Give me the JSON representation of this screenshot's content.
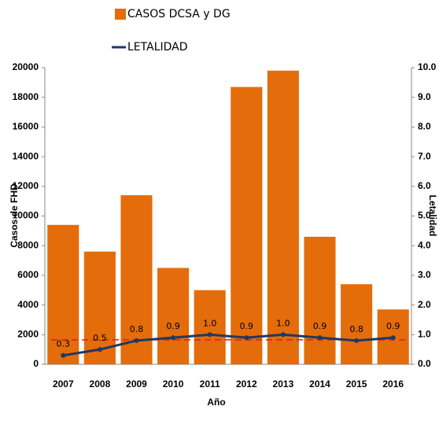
{
  "chart_data": {
    "type": "bar-line",
    "legend_position": "top",
    "xlabel": "Año",
    "ylabel": "Casos de FHD",
    "y2label": "Letalidad",
    "categories": [
      "2007",
      "2008",
      "2009",
      "2010",
      "2011",
      "2012",
      "2013",
      "2014",
      "2015",
      "2016"
    ],
    "series": [
      {
        "name": "CASOS DCSA y DG",
        "type": "bar",
        "color": "#e46c0a",
        "values": [
          9400,
          7600,
          11400,
          6500,
          5000,
          18700,
          19800,
          8600,
          5400,
          3700
        ]
      },
      {
        "name": "LETALIDAD",
        "type": "line",
        "axis": "y2",
        "color": "#1f3864",
        "values": [
          0.3,
          0.5,
          0.8,
          0.9,
          1.0,
          0.9,
          1.0,
          0.9,
          0.8,
          0.9
        ],
        "value_labels": [
          "0.3",
          "0.5",
          "0.8",
          "0.9",
          "1.0",
          "0.9",
          "1.0",
          "0.9",
          "0.8",
          "0.9"
        ]
      }
    ],
    "reference_line": {
      "value": 1650,
      "color": "#d62020"
    },
    "ylim": [
      0,
      20000
    ],
    "yticks": [
      0,
      2000,
      4000,
      6000,
      8000,
      10000,
      12000,
      14000,
      16000,
      18000,
      20000
    ],
    "y2lim": [
      0,
      10
    ],
    "y2ticks": [
      {
        "value": 0,
        "label": "0.0"
      },
      {
        "value": 1,
        "label": "1.0"
      },
      {
        "value": 2,
        "label": "2.0"
      },
      {
        "value": 3,
        "label": "3.0"
      },
      {
        "value": 4,
        "label": "4.0"
      },
      {
        "value": 5,
        "label": "5.0"
      },
      {
        "value": 6,
        "label": "6.0"
      },
      {
        "value": 7,
        "label": "7.0"
      },
      {
        "value": 8,
        "label": "8.0"
      },
      {
        "value": 9,
        "label": "9.0"
      },
      {
        "value": 10,
        "label": "10.0"
      }
    ]
  }
}
